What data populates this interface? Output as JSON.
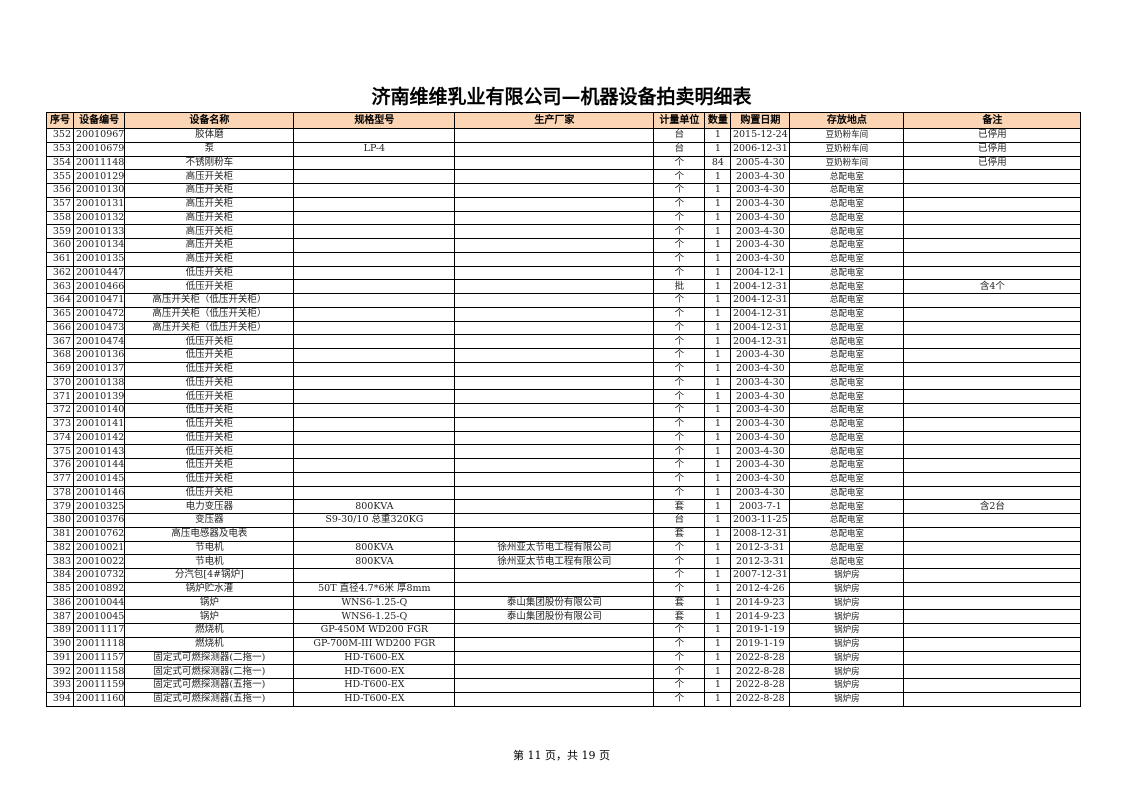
{
  "title": "济南维维乳业有限公司—机器设备拍卖明细表",
  "columns": [
    "序号",
    "设备编号",
    "设备名称",
    "规格型号",
    "生产厂家",
    "计量单位",
    "数量",
    "购置日期",
    "存放地点",
    "备注"
  ],
  "rows": [
    [
      "352",
      "20010967",
      "胶体磨",
      "",
      "",
      "台",
      "1",
      "2015-12-24",
      "豆奶粉车间",
      "已停用"
    ],
    [
      "353",
      "20010679",
      "泵",
      "LP-4",
      "",
      "台",
      "1",
      "2006-12-31",
      "豆奶粉车间",
      "已停用"
    ],
    [
      "354",
      "20011148",
      "不锈刚粉车",
      "",
      "",
      "个",
      "84",
      "2005-4-30",
      "豆奶粉车间",
      "已停用"
    ],
    [
      "355",
      "20010129",
      "高压开关柜",
      "",
      "",
      "个",
      "1",
      "2003-4-30",
      "总配电室",
      ""
    ],
    [
      "356",
      "20010130",
      "高压开关柜",
      "",
      "",
      "个",
      "1",
      "2003-4-30",
      "总配电室",
      ""
    ],
    [
      "357",
      "20010131",
      "高压开关柜",
      "",
      "",
      "个",
      "1",
      "2003-4-30",
      "总配电室",
      ""
    ],
    [
      "358",
      "20010132",
      "高压开关柜",
      "",
      "",
      "个",
      "1",
      "2003-4-30",
      "总配电室",
      ""
    ],
    [
      "359",
      "20010133",
      "高压开关柜",
      "",
      "",
      "个",
      "1",
      "2003-4-30",
      "总配电室",
      ""
    ],
    [
      "360",
      "20010134",
      "高压开关柜",
      "",
      "",
      "个",
      "1",
      "2003-4-30",
      "总配电室",
      ""
    ],
    [
      "361",
      "20010135",
      "高压开关柜",
      "",
      "",
      "个",
      "1",
      "2003-4-30",
      "总配电室",
      ""
    ],
    [
      "362",
      "20010447",
      "低压开关柜",
      "",
      "",
      "个",
      "1",
      "2004-12-1",
      "总配电室",
      ""
    ],
    [
      "363",
      "20010466",
      "低压开关柜",
      "",
      "",
      "批",
      "1",
      "2004-12-31",
      "总配电室",
      "含4个"
    ],
    [
      "364",
      "20010471",
      "高压开关柜（低压开关柜）",
      "",
      "",
      "个",
      "1",
      "2004-12-31",
      "总配电室",
      ""
    ],
    [
      "365",
      "20010472",
      "高压开关柜（低压开关柜）",
      "",
      "",
      "个",
      "1",
      "2004-12-31",
      "总配电室",
      ""
    ],
    [
      "366",
      "20010473",
      "高压开关柜（低压开关柜）",
      "",
      "",
      "个",
      "1",
      "2004-12-31",
      "总配电室",
      ""
    ],
    [
      "367",
      "20010474",
      "低压开关柜",
      "",
      "",
      "个",
      "1",
      "2004-12-31",
      "总配电室",
      ""
    ],
    [
      "368",
      "20010136",
      "低压开关柜",
      "",
      "",
      "个",
      "1",
      "2003-4-30",
      "总配电室",
      ""
    ],
    [
      "369",
      "20010137",
      "低压开关柜",
      "",
      "",
      "个",
      "1",
      "2003-4-30",
      "总配电室",
      ""
    ],
    [
      "370",
      "20010138",
      "低压开关柜",
      "",
      "",
      "个",
      "1",
      "2003-4-30",
      "总配电室",
      ""
    ],
    [
      "371",
      "20010139",
      "低压开关柜",
      "",
      "",
      "个",
      "1",
      "2003-4-30",
      "总配电室",
      ""
    ],
    [
      "372",
      "20010140",
      "低压开关柜",
      "",
      "",
      "个",
      "1",
      "2003-4-30",
      "总配电室",
      ""
    ],
    [
      "373",
      "20010141",
      "低压开关柜",
      "",
      "",
      "个",
      "1",
      "2003-4-30",
      "总配电室",
      ""
    ],
    [
      "374",
      "20010142",
      "低压开关柜",
      "",
      "",
      "个",
      "1",
      "2003-4-30",
      "总配电室",
      ""
    ],
    [
      "375",
      "20010143",
      "低压开关柜",
      "",
      "",
      "个",
      "1",
      "2003-4-30",
      "总配电室",
      ""
    ],
    [
      "376",
      "20010144",
      "低压开关柜",
      "",
      "",
      "个",
      "1",
      "2003-4-30",
      "总配电室",
      ""
    ],
    [
      "377",
      "20010145",
      "低压开关柜",
      "",
      "",
      "个",
      "1",
      "2003-4-30",
      "总配电室",
      ""
    ],
    [
      "378",
      "20010146",
      "低压开关柜",
      "",
      "",
      "个",
      "1",
      "2003-4-30",
      "总配电室",
      ""
    ],
    [
      "379",
      "20010325",
      "电力变压器",
      "800KVA",
      "",
      "套",
      "1",
      "2003-7-1",
      "总配电室",
      "含2台"
    ],
    [
      "380",
      "20010376",
      "变压器",
      "S9-30/10 总重320KG",
      "",
      "台",
      "1",
      "2003-11-25",
      "总配电室",
      ""
    ],
    [
      "381",
      "20010762",
      "高压电感器及电表",
      "",
      "",
      "套",
      "1",
      "2008-12-31",
      "总配电室",
      ""
    ],
    [
      "382",
      "20010021",
      "节电机",
      "800KVA",
      "徐州亚太节电工程有限公司",
      "个",
      "1",
      "2012-3-31",
      "总配电室",
      ""
    ],
    [
      "383",
      "20010022",
      "节电机",
      "800KVA",
      "徐州亚太节电工程有限公司",
      "个",
      "1",
      "2012-3-31",
      "总配电室",
      ""
    ],
    [
      "384",
      "20010732",
      "分汽包[4#锅炉]",
      "",
      "",
      "个",
      "1",
      "2007-12-31",
      "锅炉房",
      ""
    ],
    [
      "385",
      "20010892",
      "锅炉贮水灌",
      "50T 直径4.7*6米 厚8mm",
      "",
      "个",
      "1",
      "2012-4-26",
      "锅炉房",
      ""
    ],
    [
      "386",
      "20010044",
      "锅炉",
      "WNS6-1.25-Q",
      "泰山集团股份有限公司",
      "套",
      "1",
      "2014-9-23",
      "锅炉房",
      ""
    ],
    [
      "387",
      "20010045",
      "锅炉",
      "WNS6-1.25-Q",
      "泰山集团股份有限公司",
      "套",
      "1",
      "2014-9-23",
      "锅炉房",
      ""
    ],
    [
      "389",
      "20011117",
      "燃烧机",
      "GP-450M WD200 FGR",
      "",
      "个",
      "1",
      "2019-1-19",
      "锅炉房",
      ""
    ],
    [
      "390",
      "20011118",
      "燃烧机",
      "GP-700M-III WD200 FGR",
      "",
      "个",
      "1",
      "2019-1-19",
      "锅炉房",
      ""
    ],
    [
      "391",
      "20011157",
      "固定式可燃探测器(二拖一)",
      "HD-T600-EX",
      "",
      "个",
      "1",
      "2022-8-28",
      "锅炉房",
      ""
    ],
    [
      "392",
      "20011158",
      "固定式可燃探测器(二拖一)",
      "HD-T600-EX",
      "",
      "个",
      "1",
      "2022-8-28",
      "锅炉房",
      ""
    ],
    [
      "393",
      "20011159",
      "固定式可燃探测器(五拖一)",
      "HD-T600-EX",
      "",
      "个",
      "1",
      "2022-8-28",
      "锅炉房",
      ""
    ],
    [
      "394",
      "20011160",
      "固定式可燃探测器(五拖一)",
      "HD-T600-EX",
      "",
      "个",
      "1",
      "2022-8-28",
      "锅炉房",
      ""
    ]
  ],
  "footer": "第 11 页，共 19 页",
  "colors": {
    "header_bg": "#fcd5b4"
  }
}
